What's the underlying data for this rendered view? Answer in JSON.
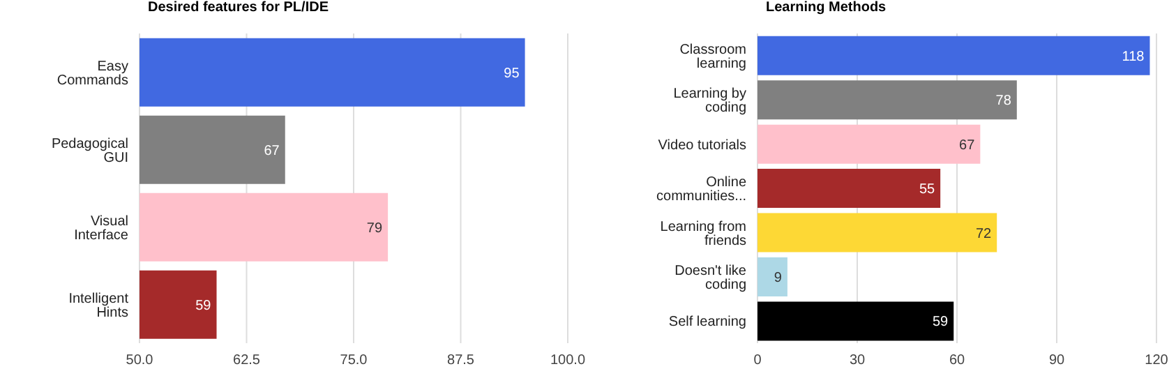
{
  "chart_data": [
    {
      "type": "bar",
      "orientation": "horizontal",
      "title": "Desired features for PL/IDE",
      "categories": [
        "Easy Commands",
        "Pedagogical GUI",
        "Visual Interface",
        "Intelligent Hints"
      ],
      "values": [
        95,
        67,
        79,
        59
      ],
      "colors": [
        "#4169e1",
        "#808080",
        "#ffc0cb",
        "#a52a2a"
      ],
      "xlim": [
        50,
        100
      ],
      "xticks": [
        {
          "value": 50,
          "label": "50.0"
        },
        {
          "value": 62.5,
          "label": "62.5"
        },
        {
          "value": 75,
          "label": "75.0"
        },
        {
          "value": 87.5,
          "label": "87.5"
        },
        {
          "value": 100,
          "label": "100.0"
        }
      ],
      "grid": "x",
      "data_labels": true
    },
    {
      "type": "bar",
      "orientation": "horizontal",
      "title": "Learning Methods",
      "categories": [
        "Classroom learning",
        "Learning by coding",
        "Video tutorials",
        "Online communities...",
        "Learning from friends",
        "Doesn't like coding",
        "Self learning"
      ],
      "values": [
        118,
        78,
        67,
        55,
        72,
        9,
        59
      ],
      "colors": [
        "#4169e1",
        "#808080",
        "#ffc0cb",
        "#a52a2a",
        "#fdd835",
        "#add8e6",
        "#000000"
      ],
      "xlim": [
        0,
        120
      ],
      "xticks": [
        0,
        30,
        60,
        90,
        120
      ],
      "grid": "x",
      "data_labels": true
    }
  ]
}
